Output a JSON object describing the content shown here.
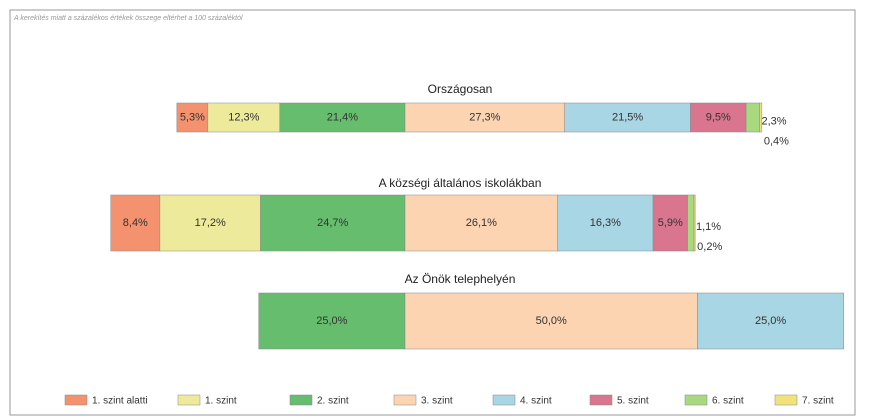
{
  "chart_data": {
    "type": "stacked-bar-horizontal-diverging",
    "note": "A kerekítés miatt a százalékos értékek összege eltérhet a 100 százaléktól",
    "categories": [
      "Országosan",
      "A községi általános iskolákban",
      "Az Önök telephelyén"
    ],
    "series": [
      {
        "name": "1. szint alatti",
        "color": "#f4926f",
        "values": [
          5.3,
          8.4,
          0
        ],
        "value_labels": [
          "5,3%",
          "8,4%",
          null
        ]
      },
      {
        "name": "1. szint",
        "color": "#eeea9c",
        "values": [
          12.3,
          17.2,
          0
        ],
        "value_labels": [
          "12,3%",
          "17,2%",
          null
        ]
      },
      {
        "name": "2. szint",
        "color": "#66bd6e",
        "values": [
          21.4,
          24.7,
          25.0
        ],
        "value_labels": [
          "21,4%",
          "24,7%",
          "25,0%"
        ]
      },
      {
        "name": "3. szint",
        "color": "#fcd4b2",
        "values": [
          27.3,
          26.1,
          50.0
        ],
        "value_labels": [
          "27,3%",
          "26,1%",
          "50,0%"
        ]
      },
      {
        "name": "4. szint",
        "color": "#a8d6e5",
        "values": [
          21.5,
          16.3,
          25.0
        ],
        "value_labels": [
          "21,5%",
          "16,3%",
          "25,0%"
        ]
      },
      {
        "name": "5. szint",
        "color": "#d9758e",
        "values": [
          9.5,
          5.9,
          0
        ],
        "value_labels": [
          "9,5%",
          "5,9%",
          null
        ]
      },
      {
        "name": "6. szint",
        "color": "#a8d880",
        "values": [
          2.3,
          1.1,
          0
        ],
        "value_labels": [
          "2,3%",
          "1,1%",
          null
        ]
      },
      {
        "name": "7. szint",
        "color": "#f2e27a",
        "values": [
          0.4,
          0.2,
          0
        ],
        "value_labels": [
          "0,4%",
          "0,2%",
          null
        ]
      }
    ]
  }
}
